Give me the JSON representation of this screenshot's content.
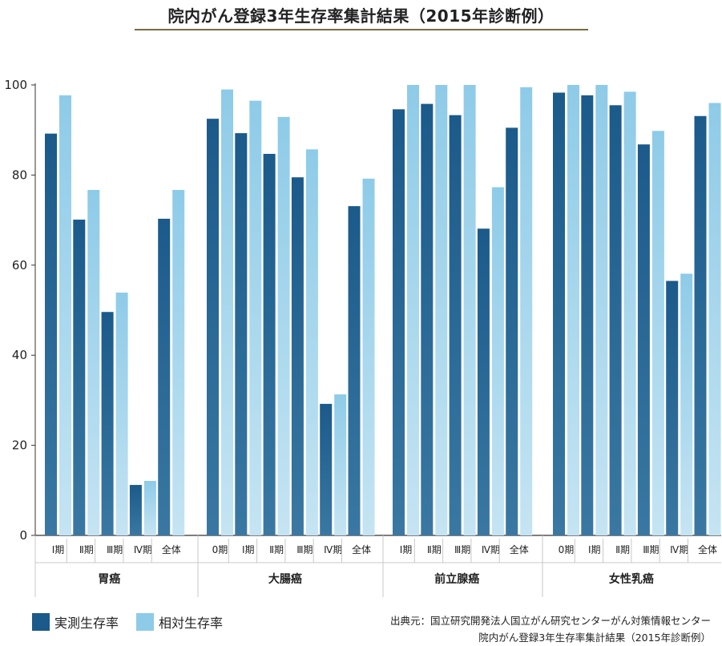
{
  "title": "院内がん登録3年生存率集計結果（2015年診断例）",
  "chart_data": {
    "type": "bar",
    "title": "院内がん登録3年生存率集計結果（2015年診断例）",
    "ylim": [
      0,
      100
    ],
    "yticks": [
      0,
      20,
      40,
      60,
      80,
      100
    ],
    "grid": false,
    "series": [
      {
        "name": "実測生存率",
        "color": "#1b5a8a"
      },
      {
        "name": "相対生存率",
        "color": "#8ecbe8"
      }
    ],
    "groups": [
      {
        "name": "胃癌",
        "categories": [
          "Ⅰ期",
          "Ⅱ期",
          "Ⅲ期",
          "Ⅳ期",
          "全体"
        ],
        "measured": [
          89.2,
          70.1,
          49.6,
          11.2,
          70.3
        ],
        "relative": [
          97.7,
          76.7,
          53.9,
          12.1,
          76.7
        ]
      },
      {
        "name": "大腸癌",
        "categories": [
          "0期",
          "Ⅰ期",
          "Ⅱ期",
          "Ⅲ期",
          "Ⅳ期",
          "全体"
        ],
        "measured": [
          92.5,
          89.3,
          84.7,
          79.5,
          29.2,
          73.1
        ],
        "relative": [
          99.0,
          96.5,
          92.9,
          85.7,
          31.3,
          79.2
        ]
      },
      {
        "name": "前立腺癌",
        "categories": [
          "Ⅰ期",
          "Ⅱ期",
          "Ⅲ期",
          "Ⅳ期",
          "全体"
        ],
        "measured": [
          94.6,
          95.8,
          93.3,
          68.1,
          90.5
        ],
        "relative": [
          100,
          100,
          100,
          77.3,
          99.5
        ]
      },
      {
        "name": "女性乳癌",
        "categories": [
          "0期",
          "Ⅰ期",
          "Ⅱ期",
          "Ⅲ期",
          "Ⅳ期",
          "全体"
        ],
        "measured": [
          98.3,
          97.7,
          95.5,
          86.8,
          56.5,
          93.1
        ],
        "relative": [
          100,
          100,
          98.5,
          89.8,
          58.1,
          96.0
        ]
      }
    ]
  },
  "legend": {
    "measured": "実測生存率",
    "relative": "相対生存率",
    "measured_color": "#1b5a8a",
    "relative_color": "#8ecbe8"
  },
  "source": {
    "line1": "出典元：国立研究開発法人国立がん研究センターがん対策情報センター",
    "line2": "院内がん登録3年生存率集計結果（2015年診断例）"
  }
}
